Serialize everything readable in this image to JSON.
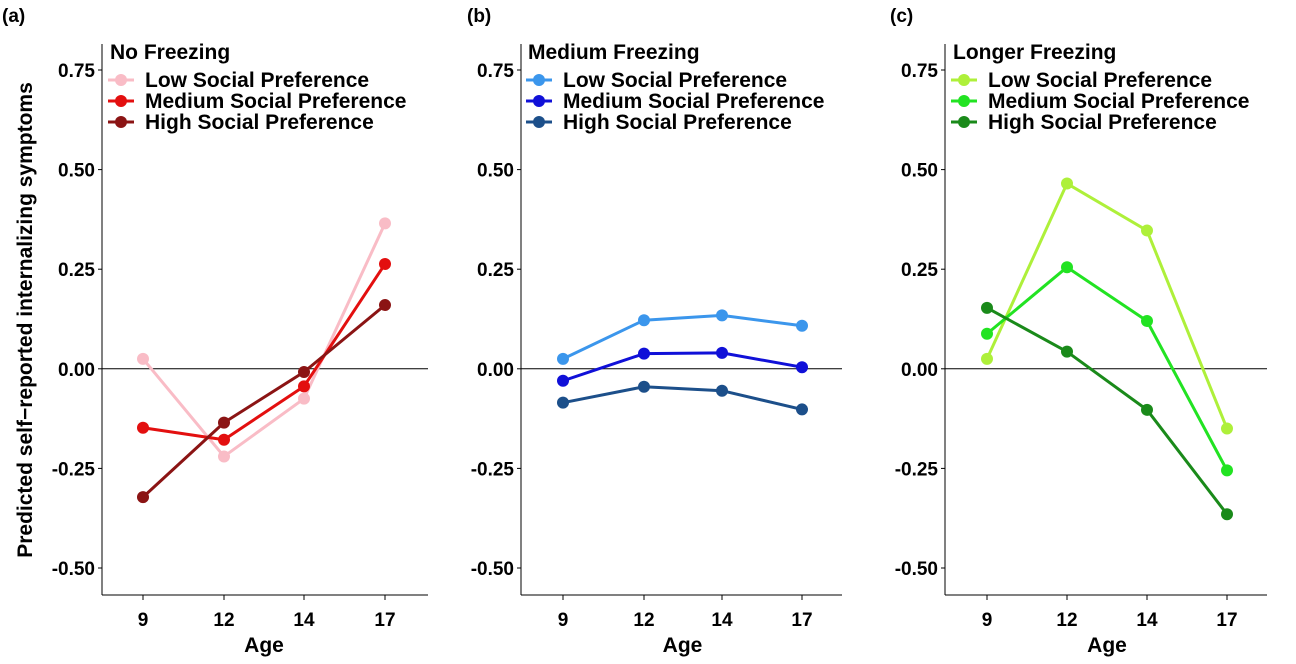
{
  "chart_data": {
    "type": "line",
    "ylabel": "Predicted self−reported internalizing symptoms",
    "xlabel": "Age",
    "x": [
      9,
      12,
      14,
      17
    ],
    "xtick_labels": [
      "9",
      "12",
      "14",
      "17"
    ],
    "ylim": [
      -0.56,
      0.79
    ],
    "yticks": [
      -0.5,
      -0.25,
      0.0,
      0.25,
      0.5,
      0.75
    ],
    "ytick_labels": [
      "-0.50",
      "-0.25",
      "0.00",
      "0.25",
      "0.50",
      "0.75"
    ],
    "reference_line_y": 0,
    "legend_placement": "top-left",
    "grid": false,
    "panels": [
      {
        "label": "(a)",
        "title": "No Freezing",
        "series": [
          {
            "name": "Low Social Preference",
            "color": "#f9bcc6",
            "values": [
              0.025,
              -0.22,
              -0.075,
              0.365
            ]
          },
          {
            "name": "Medium Social Preference",
            "color": "#e30f0f",
            "values": [
              -0.148,
              -0.178,
              -0.044,
              0.263
            ]
          },
          {
            "name": "High Social Preference",
            "color": "#8b1414",
            "values": [
              -0.322,
              -0.135,
              -0.008,
              0.16
            ]
          }
        ]
      },
      {
        "label": "(b)",
        "title": "Medium Freezing",
        "series": [
          {
            "name": "Low Social Preference",
            "color": "#3b96ec",
            "values": [
              0.025,
              0.122,
              0.134,
              0.108
            ]
          },
          {
            "name": "Medium Social Preference",
            "color": "#1010d8",
            "values": [
              -0.03,
              0.038,
              0.04,
              0.004
            ]
          },
          {
            "name": "High Social Preference",
            "color": "#1c4f8a",
            "values": [
              -0.085,
              -0.045,
              -0.055,
              -0.102
            ]
          }
        ]
      },
      {
        "label": "(c)",
        "title": "Longer Freezing",
        "series": [
          {
            "name": "Low Social Preference",
            "color": "#aef03a",
            "values": [
              0.025,
              0.465,
              0.347,
              -0.15
            ]
          },
          {
            "name": "Medium Social Preference",
            "color": "#22e322",
            "values": [
              0.088,
              0.255,
              0.12,
              -0.255
            ]
          },
          {
            "name": "High Social Preference",
            "color": "#1a8a1a",
            "values": [
              0.153,
              0.043,
              -0.103,
              -0.365
            ]
          }
        ]
      }
    ]
  }
}
